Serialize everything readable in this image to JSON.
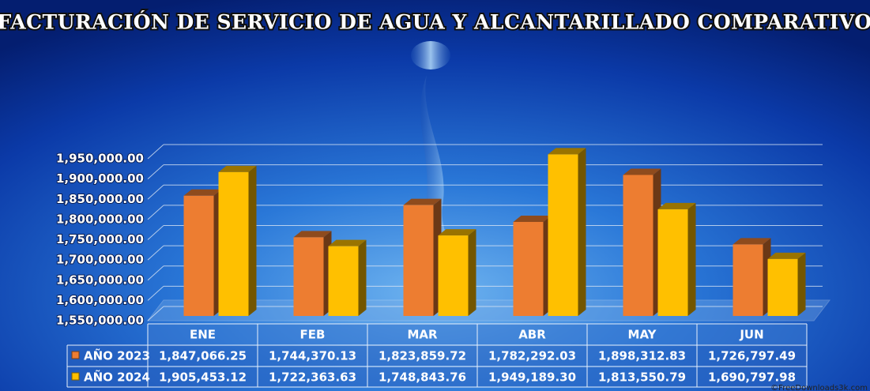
{
  "chart_data": {
    "type": "bar3d",
    "title": "FACTURACIÓN DE SERVICIO DE AGUA Y ALCANTARILLADO COMPARATIVO",
    "categories": [
      "ENE",
      "FEB",
      "MAR",
      "ABR",
      "MAY",
      "JUN"
    ],
    "series": [
      {
        "name": "AÑO 2023",
        "color": "#ed7d31",
        "values": [
          1847066.25,
          1744370.13,
          1823859.72,
          1782292.03,
          1898312.83,
          1726797.49
        ],
        "value_labels": [
          "1,847,066.25",
          "1,744,370.13",
          "1,823,859.72",
          "1,782,292.03",
          "1,898,312.83",
          "1,726,797.49"
        ]
      },
      {
        "name": "AÑO 2024",
        "color": "#ffc000",
        "values": [
          1905453.12,
          1722363.63,
          1748843.76,
          1949189.3,
          1813550.79,
          1690797.98
        ],
        "value_labels": [
          "1,905,453.12",
          "1,722,363.63",
          "1,748,843.76",
          "1,949,189.30",
          "1,813,550.79",
          "1,690,797.98"
        ]
      }
    ],
    "ylim": [
      1550000,
      1950000
    ],
    "yticks": [
      {
        "value": 1550000,
        "label": "1,550,000.00"
      },
      {
        "value": 1600000,
        "label": "1,600,000.00"
      },
      {
        "value": 1650000,
        "label": "1,650,000.00"
      },
      {
        "value": 1700000,
        "label": "1,700,000.00"
      },
      {
        "value": 1750000,
        "label": "1,750,000.00"
      },
      {
        "value": 1800000,
        "label": "1,800,000.00"
      },
      {
        "value": 1850000,
        "label": "1,850,000.00"
      },
      {
        "value": 1900000,
        "label": "1,900,000.00"
      },
      {
        "value": 1950000,
        "label": "1,950,000.00"
      }
    ],
    "grid": true,
    "watermark": "©FreeDownloads3k.com"
  }
}
